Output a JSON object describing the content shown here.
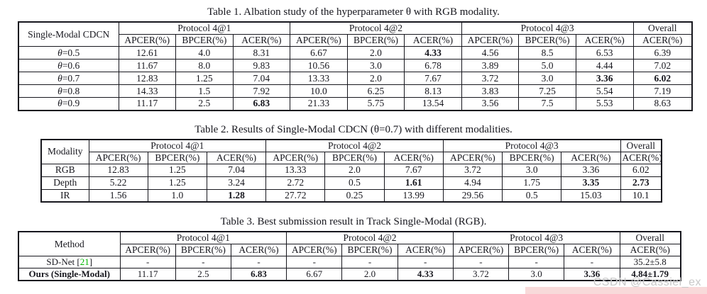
{
  "colors": {
    "text": "#17171e",
    "citation_green": "#00b400",
    "watermark_gray": "#c8c8c8",
    "band_pink": "#f8dada"
  },
  "watermark": {
    "text": "CSDN @Cassiel_ex"
  },
  "tables": [
    {
      "title": "Table 1. Albation study of the hyperparameter θ with RGB modality.",
      "corner": "Single-Modal CDCN",
      "groups": [
        "Protocol 4@1",
        "Protocol 4@2",
        "Protocol 4@3",
        "Overall"
      ],
      "sub": [
        "APCER(%)",
        "BPCER(%)",
        "ACER(%)",
        "APCER(%)",
        "BPCER(%)",
        "ACER(%)",
        "APCER(%)",
        "BPCER(%)",
        "ACER(%)",
        "ACER(%)"
      ],
      "rows": [
        {
          "label": "θ=0.5",
          "cells": [
            {
              "v": "12.61"
            },
            {
              "v": "4.0"
            },
            {
              "v": "8.31"
            },
            {
              "v": "6.67"
            },
            {
              "v": "2.0"
            },
            {
              "v": "4.33",
              "b": true
            },
            {
              "v": "4.56"
            },
            {
              "v": "8.5"
            },
            {
              "v": "6.53"
            },
            {
              "v": "6.39"
            }
          ]
        },
        {
          "label": "θ=0.6",
          "cells": [
            {
              "v": "11.67"
            },
            {
              "v": "8.0"
            },
            {
              "v": "9.83"
            },
            {
              "v": "10.56"
            },
            {
              "v": "3.0"
            },
            {
              "v": "6.78"
            },
            {
              "v": "3.89"
            },
            {
              "v": "5.0"
            },
            {
              "v": "4.44"
            },
            {
              "v": "7.02"
            }
          ]
        },
        {
          "label": "θ=0.7",
          "cells": [
            {
              "v": "12.83"
            },
            {
              "v": "1.25"
            },
            {
              "v": "7.04"
            },
            {
              "v": "13.33"
            },
            {
              "v": "2.0"
            },
            {
              "v": "7.67"
            },
            {
              "v": "3.72"
            },
            {
              "v": "3.0"
            },
            {
              "v": "3.36",
              "b": true
            },
            {
              "v": "6.02",
              "b": true
            }
          ]
        },
        {
          "label": "θ=0.8",
          "cells": [
            {
              "v": "14.33"
            },
            {
              "v": "1.5"
            },
            {
              "v": "7.92"
            },
            {
              "v": "10.0"
            },
            {
              "v": "6.25"
            },
            {
              "v": "8.13"
            },
            {
              "v": "3.83"
            },
            {
              "v": "7.25"
            },
            {
              "v": "5.54"
            },
            {
              "v": "7.19"
            }
          ]
        },
        {
          "label": "θ=0.9",
          "cells": [
            {
              "v": "11.17"
            },
            {
              "v": "2.5"
            },
            {
              "v": "6.83",
              "b": true
            },
            {
              "v": "21.33"
            },
            {
              "v": "5.75"
            },
            {
              "v": "13.54"
            },
            {
              "v": "3.56"
            },
            {
              "v": "7.5"
            },
            {
              "v": "5.53"
            },
            {
              "v": "8.63"
            }
          ]
        }
      ]
    },
    {
      "title": "Table 2. Results of Single-Modal CDCN (θ=0.7) with different modalities.",
      "corner": "Modality",
      "groups": [
        "Protocol 4@1",
        "Protocol 4@2",
        "Protocol 4@3",
        "Overall"
      ],
      "sub": [
        "APCER(%)",
        "BPCER(%)",
        "ACER(%)",
        "APCER(%)",
        "BPCER(%)",
        "ACER(%)",
        "APCER(%)",
        "BPCER(%)",
        "ACER(%)",
        "ACER(%)"
      ],
      "rows": [
        {
          "label": "RGB",
          "cells": [
            {
              "v": "12.83"
            },
            {
              "v": "1.25"
            },
            {
              "v": "7.04"
            },
            {
              "v": "13.33"
            },
            {
              "v": "2.0"
            },
            {
              "v": "7.67"
            },
            {
              "v": "3.72"
            },
            {
              "v": "3.0"
            },
            {
              "v": "3.36"
            },
            {
              "v": "6.02"
            }
          ]
        },
        {
          "label": "Depth",
          "cells": [
            {
              "v": "5.22"
            },
            {
              "v": "1.25"
            },
            {
              "v": "3.24"
            },
            {
              "v": "2.72"
            },
            {
              "v": "0.5"
            },
            {
              "v": "1.61",
              "b": true
            },
            {
              "v": "4.94"
            },
            {
              "v": "1.75"
            },
            {
              "v": "3.35",
              "b": true
            },
            {
              "v": "2.73",
              "b": true
            }
          ]
        },
        {
          "label": "IR",
          "cells": [
            {
              "v": "1.56"
            },
            {
              "v": "1.0"
            },
            {
              "v": "1.28",
              "b": true
            },
            {
              "v": "27.72"
            },
            {
              "v": "0.25"
            },
            {
              "v": "13.99"
            },
            {
              "v": "29.56"
            },
            {
              "v": "0.5"
            },
            {
              "v": "15.03"
            },
            {
              "v": "10.1"
            }
          ]
        }
      ]
    },
    {
      "title": "Table 3. Best submission result in Track Single-Modal (RGB).",
      "corner": "Method",
      "groups": [
        "Protocol 4@1",
        "Protocol 4@2",
        "Protocol 4@3",
        "Overall"
      ],
      "sub": [
        "APCER(%)",
        "BPCER(%)",
        "ACER(%)",
        "APCER(%)",
        "BPCER(%)",
        "ACER(%)",
        "APCER(%)",
        "BPCER(%)",
        "ACER(%)",
        "ACER(%)"
      ],
      "rows": [
        {
          "label": "SD-Net",
          "cite": "21",
          "cells": [
            {
              "v": "-"
            },
            {
              "v": "-"
            },
            {
              "v": "-"
            },
            {
              "v": "-"
            },
            {
              "v": "-"
            },
            {
              "v": "-"
            },
            {
              "v": "-"
            },
            {
              "v": "-"
            },
            {
              "v": "-"
            },
            {
              "v": "35.2±5.8"
            }
          ]
        },
        {
          "label": "Ours (Single-Modal)",
          "bold": true,
          "cells": [
            {
              "v": "11.17"
            },
            {
              "v": "2.5"
            },
            {
              "v": "6.83",
              "b": true
            },
            {
              "v": "6.67"
            },
            {
              "v": "2.0"
            },
            {
              "v": "4.33",
              "b": true
            },
            {
              "v": "3.72"
            },
            {
              "v": "3.0"
            },
            {
              "v": "3.36",
              "b": true
            },
            {
              "v": "4.84±1.79",
              "b": true
            }
          ]
        }
      ]
    }
  ]
}
